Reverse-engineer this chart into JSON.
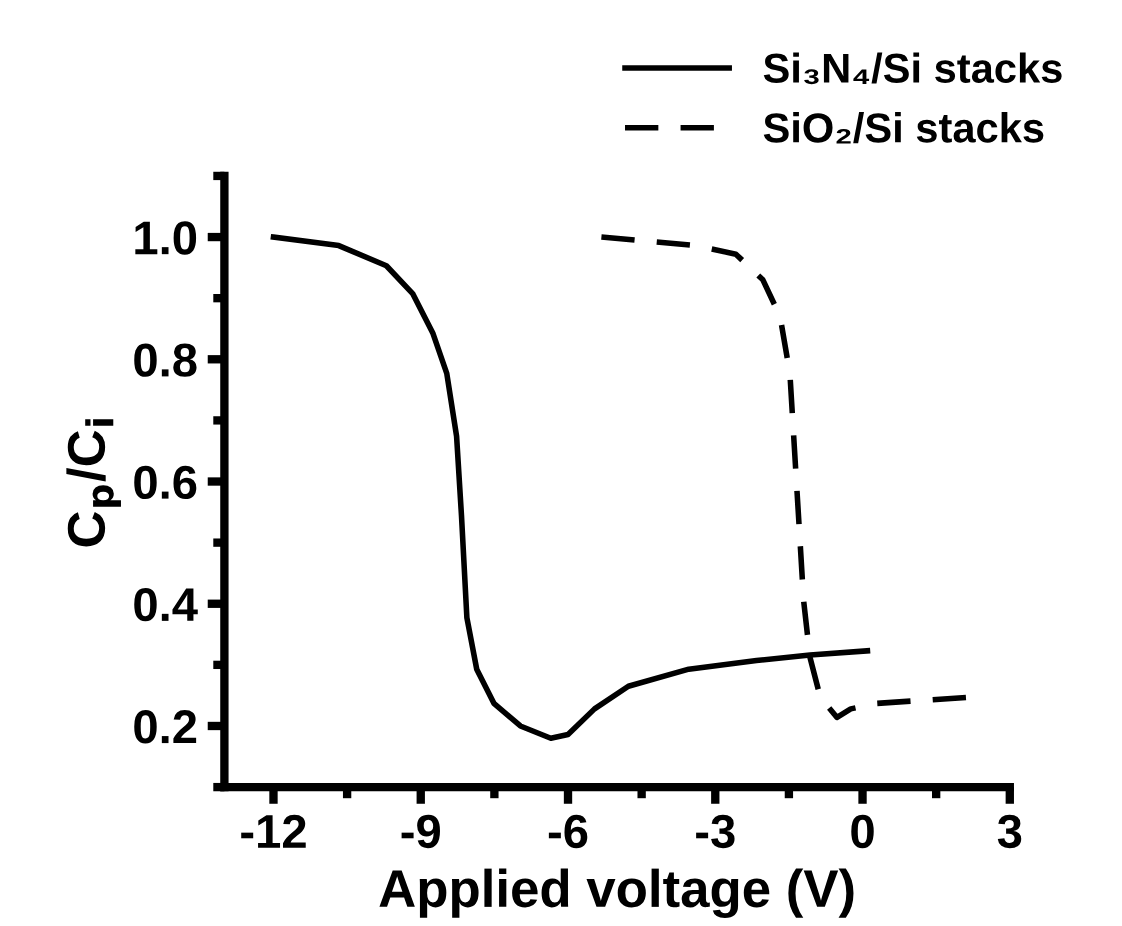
{
  "chart_data": {
    "type": "line",
    "xlabel": "Applied voltage (V)",
    "ylabel": "C$_{p}$/C$_{i}$",
    "xlim": [
      -13,
      3
    ],
    "ylim": [
      0.1,
      1.1
    ],
    "xticks": [
      -12,
      -9,
      -6,
      -3,
      0,
      3
    ],
    "yticks": [
      0.2,
      0.4,
      0.6,
      0.8,
      {
        "value": 1.0,
        "label": "1.0"
      }
    ],
    "grid": false,
    "legend": "top right",
    "marker": "none",
    "series": [
      {
        "name": "Si₃N₄/Si stacks",
        "color": "#000000",
        "line_style": "solid",
        "x": [
          -12,
          -10.67,
          -9.7,
          -9.16,
          -8.75,
          -8.47,
          -8.27,
          -8.17,
          -8.06,
          -7.86,
          -7.51,
          -6.97,
          -6.35,
          -6.0,
          -5.46,
          -4.77,
          -3.54,
          -2.16,
          -1.07,
          0.1
        ],
        "values": [
          1.0,
          0.986,
          0.953,
          0.907,
          0.842,
          0.777,
          0.674,
          0.544,
          0.377,
          0.293,
          0.237,
          0.2,
          0.18,
          0.186,
          0.228,
          0.265,
          0.293,
          0.307,
          0.316,
          0.323
        ]
      },
      {
        "name": "SiO₂/Si stacks",
        "color": "#000000",
        "line_style": "dashed",
        "x": [
          -5.32,
          -3.4,
          -2.58,
          -2.03,
          -1.68,
          -1.48,
          -1.34,
          -1.2,
          -1.07,
          -0.86,
          -0.52,
          -0.24,
          0.3,
          2.16
        ],
        "values": [
          1.0,
          0.986,
          0.972,
          0.93,
          0.87,
          0.777,
          0.591,
          0.405,
          0.312,
          0.247,
          0.214,
          0.228,
          0.237,
          0.247
        ]
      }
    ]
  }
}
